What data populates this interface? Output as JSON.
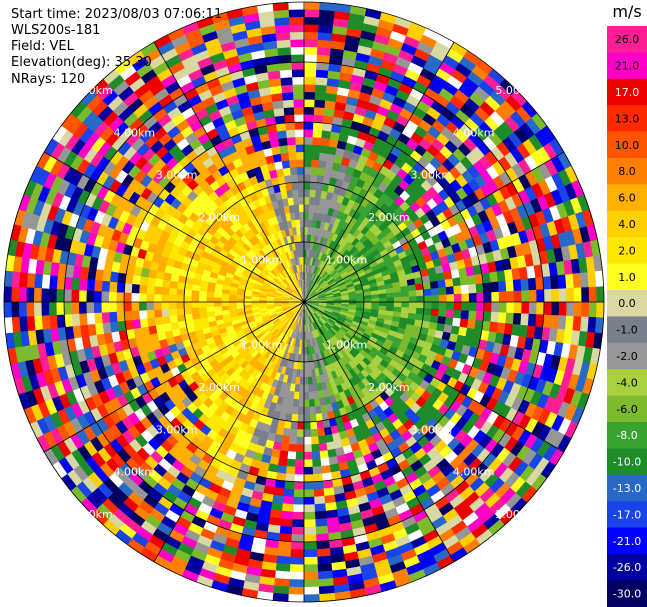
{
  "header": {
    "start_time": "Start time: 2023/08/03 07:06:11",
    "instrument": "WLS200s-181",
    "field": "Field: VEL",
    "elevation": "Elevation(deg): 35.30",
    "nrays": "NRays: 120"
  },
  "chart_data": {
    "type": "heatmap",
    "projection": "polar PPI",
    "field": "VEL",
    "units": "m/s",
    "n_rays": 120,
    "elevation_deg": 35.3,
    "range_rings": [
      {
        "label": "1.00km"
      },
      {
        "label": "2.00km"
      },
      {
        "label": "3.00km"
      },
      {
        "label": "4.00km"
      },
      {
        "label": "5.00km"
      }
    ],
    "colorbar": {
      "title": "m/s",
      "ticks": [
        "26.0",
        "21.0",
        "17.0",
        "13.0",
        "10.0",
        "8.0",
        "6.0",
        "4.0",
        "2.0",
        "1.0",
        "0.0",
        "-1.0",
        "-2.0",
        "-4.0",
        "-6.0",
        "-8.0",
        "-10.0",
        "-13.0",
        "-17.0",
        "-21.0",
        "-26.0",
        "-30.0"
      ],
      "colors": [
        "#ff1e96",
        "#ff00c8",
        "#ee0000",
        "#ff2b00",
        "#ff5500",
        "#ff8000",
        "#ffb000",
        "#ffd000",
        "#ffe700",
        "#ffff22",
        "#d8d8a0",
        "#7a7f8c",
        "#969696",
        "#a8d040",
        "#7cbc2c",
        "#3aa332",
        "#1e8c28",
        "#2868c8",
        "#1844e8",
        "#0000ff",
        "#0000a0",
        "#000060"
      ]
    },
    "velocity_core": {
      "near_range_km": 1.2,
      "toward_dir_deg": 90,
      "toward_colors": [
        "#1e8c28",
        "#3aa332",
        "#7cbc2c",
        "#a8d040"
      ],
      "away_colors": [
        "#ffd000",
        "#ffe700",
        "#ffff22",
        "#ffb000"
      ],
      "neutral_colors": [
        "#7a7f8c",
        "#969696"
      ]
    },
    "noise_colors": [
      "#ff1e96",
      "#ff00c8",
      "#ee0000",
      "#ff2b00",
      "#ff5500",
      "#ff8000",
      "#ffd000",
      "#ffff22",
      "#2868c8",
      "#1844e8",
      "#0000ff",
      "#0000a0",
      "#000060",
      "#7cbc2c",
      "#1e8c28",
      "#969696",
      "#ffffff",
      "#d8d8a0"
    ]
  }
}
